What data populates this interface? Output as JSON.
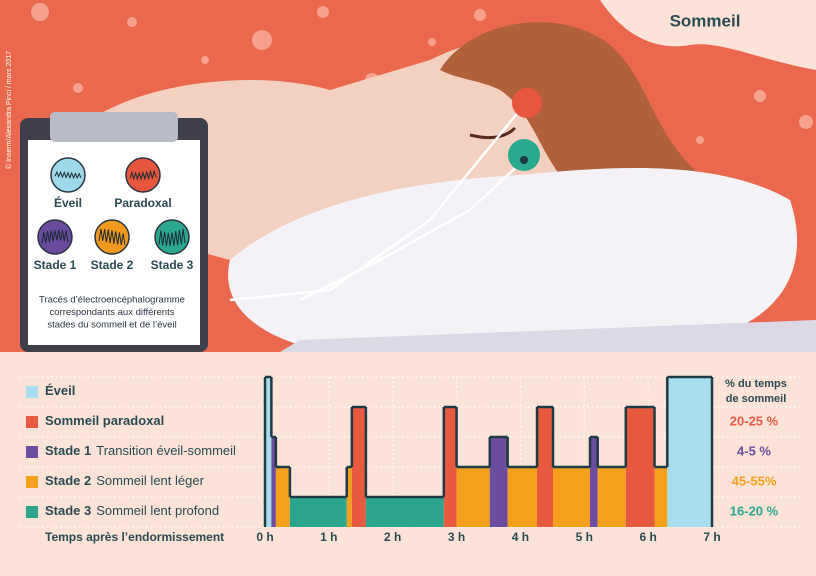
{
  "title": "Sommeil",
  "credit": "© Inserm/Alexandra Pinci / mars 2017",
  "clipboard": {
    "traces": [
      {
        "label": "Éveil",
        "color": "#9fd8ea"
      },
      {
        "label": "Paradoxal",
        "color": "#e8563f"
      },
      {
        "label": "Stade 1",
        "color": "#6a4a9c"
      },
      {
        "label": "Stade 2",
        "color": "#f39a1e"
      },
      {
        "label": "Stade 3",
        "color": "#2aa98f"
      }
    ],
    "caption": [
      "Tracés d’électroencéphalogramme",
      "correspondants aux différents",
      "stades du sommeil et de l’éveil"
    ]
  },
  "hypnogram": {
    "pct_header": [
      "% du temps",
      "de sommeil"
    ],
    "stages": [
      {
        "name": "Éveil",
        "color": "#a8dcef"
      },
      {
        "name": "Sommeil paradoxal",
        "pct": "20-25 %",
        "color": "#e85a40"
      },
      {
        "name": "Stade 1",
        "desc": "Transition éveil-sommeil",
        "pct": "4-5 %",
        "color": "#6c4c9e"
      },
      {
        "name": "Stade 2",
        "desc": "Sommeil lent léger",
        "pct": "45-55%",
        "color": "#f5a01c"
      },
      {
        "name": "Stade 3",
        "desc": "Sommeil lent profond",
        "pct": "16-20 %",
        "color": "#2ba58e"
      }
    ],
    "x_label": "Temps après l’endormissement",
    "xlim": [
      0,
      7
    ],
    "xticks": [
      {
        "value": 0,
        "label": "0 h"
      },
      {
        "value": 1,
        "label": "1 h"
      },
      {
        "value": 2,
        "label": "2 h"
      },
      {
        "value": 3,
        "label": "3 h"
      },
      {
        "value": 4,
        "label": "4 h"
      },
      {
        "value": 5,
        "label": "5 h"
      },
      {
        "value": 6,
        "label": "6 h"
      },
      {
        "value": 7,
        "label": "7 h"
      }
    ],
    "segments": [
      {
        "start": 0,
        "end": 0.1,
        "stage": 0
      },
      {
        "start": 0.1,
        "end": 0.17,
        "stage": 2
      },
      {
        "start": 0.17,
        "end": 0.39,
        "stage": 3
      },
      {
        "start": 0.39,
        "end": 1.28,
        "stage": 4
      },
      {
        "start": 1.28,
        "end": 1.36,
        "stage": 3
      },
      {
        "start": 1.36,
        "end": 1.58,
        "stage": 1
      },
      {
        "start": 1.58,
        "end": 2.8,
        "stage": 4
      },
      {
        "start": 2.8,
        "end": 3.0,
        "stage": 1
      },
      {
        "start": 3.0,
        "end": 3.52,
        "stage": 3
      },
      {
        "start": 3.52,
        "end": 3.8,
        "stage": 2
      },
      {
        "start": 3.8,
        "end": 4.26,
        "stage": 3
      },
      {
        "start": 4.26,
        "end": 4.51,
        "stage": 1
      },
      {
        "start": 4.51,
        "end": 5.09,
        "stage": 3
      },
      {
        "start": 5.09,
        "end": 5.21,
        "stage": 2
      },
      {
        "start": 5.21,
        "end": 5.65,
        "stage": 3
      },
      {
        "start": 5.65,
        "end": 6.1,
        "stage": 1
      },
      {
        "start": 6.1,
        "end": 6.3,
        "stage": 3
      },
      {
        "start": 6.3,
        "end": 7,
        "stage": 0
      }
    ]
  }
}
